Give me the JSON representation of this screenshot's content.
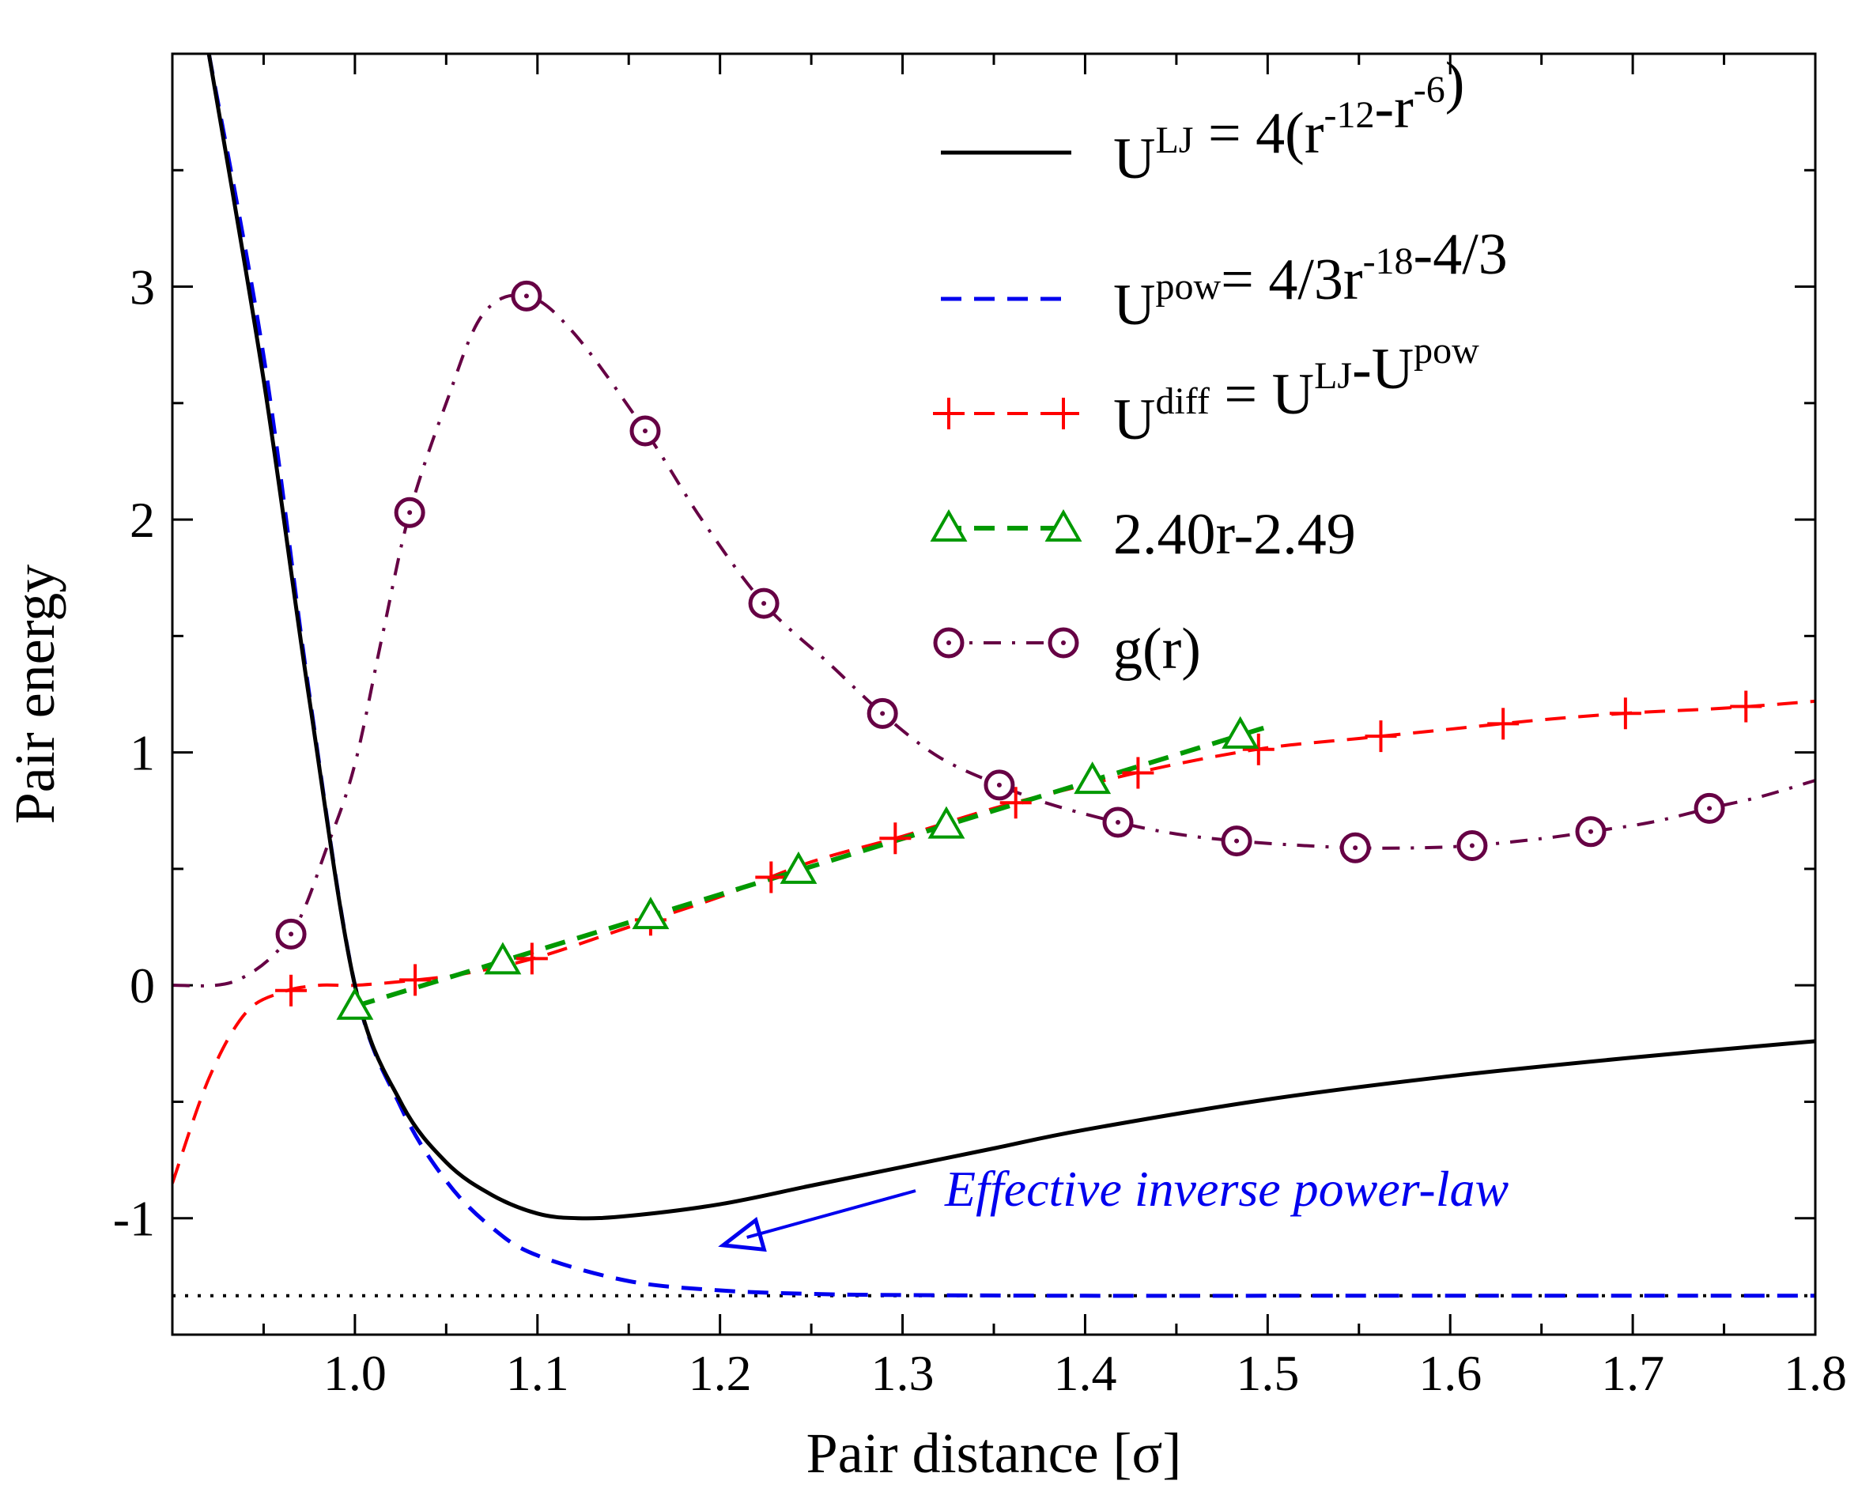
{
  "chart_data": {
    "type": "line",
    "xlabel": "Pair distance [σ]",
    "ylabel": "Pair energy",
    "xlim": [
      0.9,
      1.8
    ],
    "ylim": [
      -1.5,
      4.0
    ],
    "x_ticks": [
      1.0,
      1.1,
      1.2,
      1.3,
      1.4,
      1.5,
      1.6,
      1.7,
      1.8
    ],
    "x_tick_labels": [
      "1.0",
      "1.1",
      "1.2",
      "1.3",
      "1.4",
      "1.5",
      "1.6",
      "1.7",
      "1.8"
    ],
    "y_ticks": [
      -1,
      0,
      1,
      2,
      3
    ],
    "y_tick_labels": [
      "-1",
      "0",
      "1",
      "2",
      "3"
    ],
    "legend_position": "top-right",
    "series": [
      {
        "id": "ulj",
        "color": "#000000",
        "style": "solid",
        "marker": "none",
        "legend": {
          "base": "U",
          "sup": "LJ",
          "rest": " = 4(r",
          "sup2": "-12",
          "mid": "-r",
          "sup3": "-6",
          "tail": ")"
        },
        "points": [
          [
            0.92,
            4.0
          ],
          [
            0.95,
            2.6
          ],
          [
            0.975,
            1.23
          ],
          [
            1.0,
            0.0
          ],
          [
            1.025,
            -0.5
          ],
          [
            1.05,
            -0.76
          ],
          [
            1.075,
            -0.9
          ],
          [
            1.1,
            -0.98
          ],
          [
            1.122,
            -1.0
          ],
          [
            1.15,
            -0.99
          ],
          [
            1.2,
            -0.94
          ],
          [
            1.25,
            -0.86
          ],
          [
            1.3,
            -0.78
          ],
          [
            1.35,
            -0.7
          ],
          [
            1.4,
            -0.62
          ],
          [
            1.5,
            -0.49
          ],
          [
            1.6,
            -0.39
          ],
          [
            1.7,
            -0.31
          ],
          [
            1.8,
            -0.24
          ]
        ]
      },
      {
        "id": "upow",
        "color": "#0000ee",
        "style": "dashed",
        "marker": "none",
        "legend": {
          "base": "U",
          "sup": "pow",
          "rest": "= 4/3r",
          "sup2": "-18",
          "mid": "-4/3",
          "sup3": "",
          "tail": ""
        },
        "points": [
          [
            0.92,
            4.0
          ],
          [
            0.95,
            2.7
          ],
          [
            0.975,
            1.25
          ],
          [
            1.0,
            0.0
          ],
          [
            1.025,
            -0.52
          ],
          [
            1.05,
            -0.84
          ],
          [
            1.075,
            -1.04
          ],
          [
            1.1,
            -1.16
          ],
          [
            1.15,
            -1.27
          ],
          [
            1.2,
            -1.31
          ],
          [
            1.25,
            -1.325
          ],
          [
            1.3,
            -1.33
          ],
          [
            1.4,
            -1.333
          ],
          [
            1.5,
            -1.333
          ],
          [
            1.6,
            -1.333
          ],
          [
            1.7,
            -1.333
          ],
          [
            1.8,
            -1.333
          ]
        ]
      },
      {
        "id": "udiff",
        "color": "#ff0000",
        "style": "dashed",
        "marker": "plus",
        "legend": {
          "base": "U",
          "sup": "diff",
          "rest": " = U",
          "sup2": "LJ",
          "mid": "-U",
          "sup3": "pow",
          "tail": ""
        },
        "points": [
          [
            0.9,
            -0.85
          ],
          [
            0.92,
            -0.4
          ],
          [
            0.94,
            -0.12
          ],
          [
            0.96,
            -0.03
          ],
          [
            0.98,
            0.0
          ],
          [
            1.0,
            0.0
          ],
          [
            1.03,
            0.02
          ],
          [
            1.06,
            0.05
          ],
          [
            1.1,
            0.12
          ],
          [
            1.15,
            0.25
          ],
          [
            1.2,
            0.38
          ],
          [
            1.25,
            0.53
          ],
          [
            1.3,
            0.64
          ],
          [
            1.35,
            0.76
          ],
          [
            1.4,
            0.86
          ],
          [
            1.45,
            0.95
          ],
          [
            1.5,
            1.02
          ],
          [
            1.55,
            1.06
          ],
          [
            1.6,
            1.1
          ],
          [
            1.65,
            1.14
          ],
          [
            1.7,
            1.17
          ],
          [
            1.75,
            1.19
          ],
          [
            1.8,
            1.22
          ]
        ],
        "marker_x": [
          0.965,
          1.033,
          1.097,
          1.162,
          1.228,
          1.296,
          1.362,
          1.429,
          1.495,
          1.562,
          1.629,
          1.696,
          1.762
        ]
      },
      {
        "id": "linear",
        "color": "#009900",
        "style": "dashed",
        "marker": "triangle",
        "legend": {
          "base": "2.40r-2.49",
          "sup": "",
          "rest": "",
          "sup2": "",
          "mid": "",
          "sup3": "",
          "tail": ""
        },
        "points": [
          [
            1.0,
            -0.09
          ],
          [
            1.5,
            1.11
          ]
        ],
        "marker_x": [
          1.0,
          1.081,
          1.162,
          1.243,
          1.324,
          1.404,
          1.485
        ]
      },
      {
        "id": "gr",
        "color": "#660044",
        "style": "dashdot",
        "marker": "circle",
        "legend": {
          "base": "g(r)",
          "sup": "",
          "rest": "",
          "sup2": "",
          "mid": "",
          "sup3": "",
          "tail": ""
        },
        "points": [
          [
            0.9,
            0.0
          ],
          [
            0.935,
            0.02
          ],
          [
            0.965,
            0.22
          ],
          [
            0.985,
            0.6
          ],
          [
            1.0,
            0.95
          ],
          [
            1.015,
            1.5
          ],
          [
            1.03,
            2.03
          ],
          [
            1.05,
            2.5
          ],
          [
            1.07,
            2.88
          ],
          [
            1.094,
            2.96
          ],
          [
            1.12,
            2.8
          ],
          [
            1.16,
            2.37
          ],
          [
            1.19,
            2.0
          ],
          [
            1.224,
            1.64
          ],
          [
            1.26,
            1.38
          ],
          [
            1.29,
            1.16
          ],
          [
            1.32,
            0.98
          ],
          [
            1.353,
            0.86
          ],
          [
            1.38,
            0.78
          ],
          [
            1.418,
            0.7
          ],
          [
            1.45,
            0.65
          ],
          [
            1.483,
            0.62
          ],
          [
            1.52,
            0.6
          ],
          [
            1.55,
            0.59
          ],
          [
            1.58,
            0.59
          ],
          [
            1.612,
            0.6
          ],
          [
            1.65,
            0.63
          ],
          [
            1.677,
            0.66
          ],
          [
            1.71,
            0.7
          ],
          [
            1.742,
            0.76
          ],
          [
            1.77,
            0.81
          ],
          [
            1.8,
            0.88
          ]
        ],
        "marker_x": [
          0.965,
          1.03,
          1.094,
          1.159,
          1.224,
          1.289,
          1.353,
          1.418,
          1.483,
          1.548,
          1.612,
          1.677,
          1.742
        ]
      },
      {
        "id": "asymptote",
        "color": "#000000",
        "style": "dotted",
        "marker": "none",
        "legend": null,
        "points": [
          [
            0.9,
            -1.333
          ],
          [
            1.8,
            -1.333
          ]
        ]
      }
    ],
    "annotation": {
      "text": "Effective inverse power-law",
      "color": "#0000ee",
      "arrow_to": [
        1.2,
        -1.15
      ],
      "arrow_from": [
        1.32,
        -0.9
      ]
    }
  }
}
